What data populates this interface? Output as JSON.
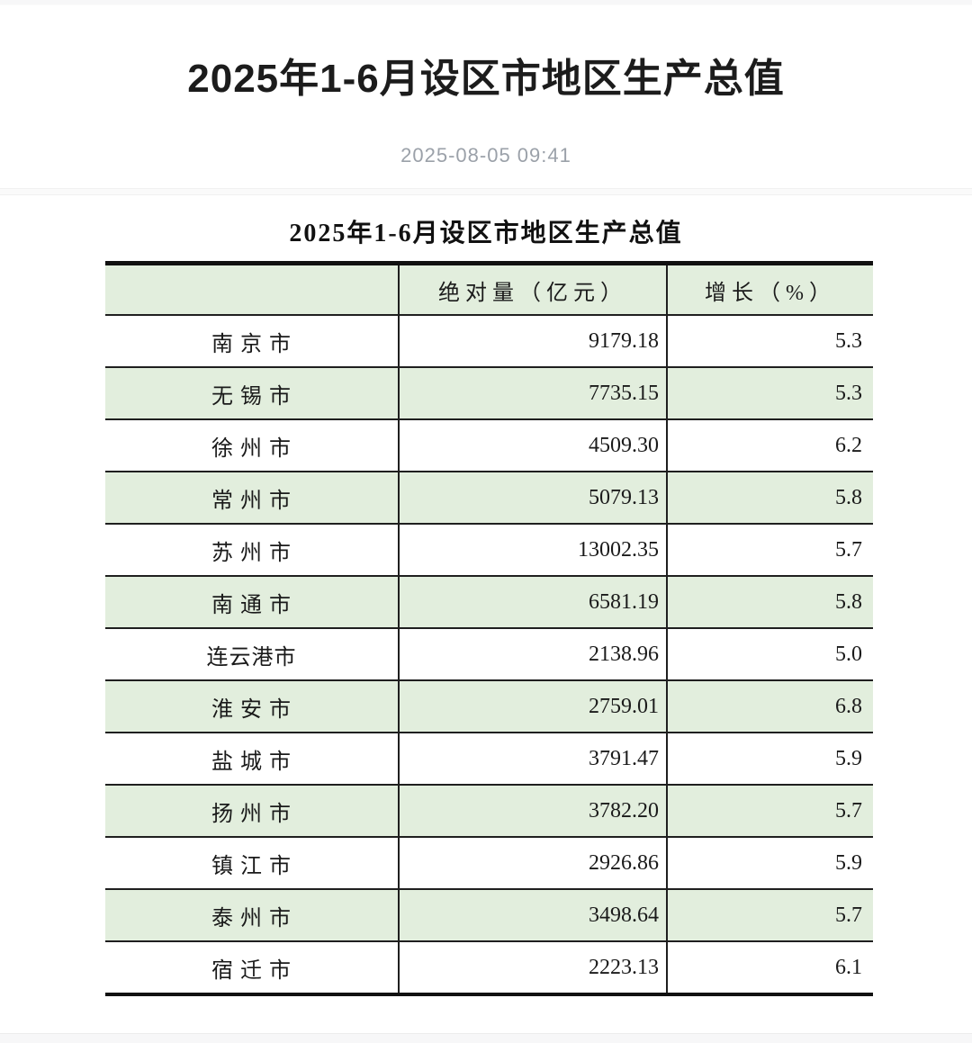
{
  "page": {
    "title": "2025年1-6月设区市地区生产总值",
    "date": "2025-08-05 09:41"
  },
  "table": {
    "title": "2025年1-6月设区市地区生产总值",
    "columns": [
      "",
      "绝对量（亿元）",
      "增长（%）"
    ],
    "rows": [
      {
        "city": "南 京 市",
        "value": "9179.18",
        "growth": "5.3"
      },
      {
        "city": "无 锡 市",
        "value": "7735.15",
        "growth": "5.3"
      },
      {
        "city": "徐 州 市",
        "value": "4509.30",
        "growth": "6.2"
      },
      {
        "city": "常 州 市",
        "value": "5079.13",
        "growth": "5.8"
      },
      {
        "city": "苏 州 市",
        "value": "13002.35",
        "growth": "5.7"
      },
      {
        "city": "南 通 市",
        "value": "6581.19",
        "growth": "5.8"
      },
      {
        "city": "连云港市",
        "value": "2138.96",
        "growth": "5.0"
      },
      {
        "city": "淮 安 市",
        "value": "2759.01",
        "growth": "6.8"
      },
      {
        "city": "盐 城 市",
        "value": "3791.47",
        "growth": "5.9"
      },
      {
        "city": "扬 州 市",
        "value": "3782.20",
        "growth": "5.7"
      },
      {
        "city": "镇 江 市",
        "value": "2926.86",
        "growth": "5.9"
      },
      {
        "city": "泰 州 市",
        "value": "3498.64",
        "growth": "5.7"
      },
      {
        "city": "宿 迁 市",
        "value": "2223.13",
        "growth": "6.1"
      }
    ]
  },
  "colors": {
    "row_stripe_green": "#e2eedd",
    "table_rule": "#1f1f1f",
    "date_text": "#9ba1a9"
  }
}
